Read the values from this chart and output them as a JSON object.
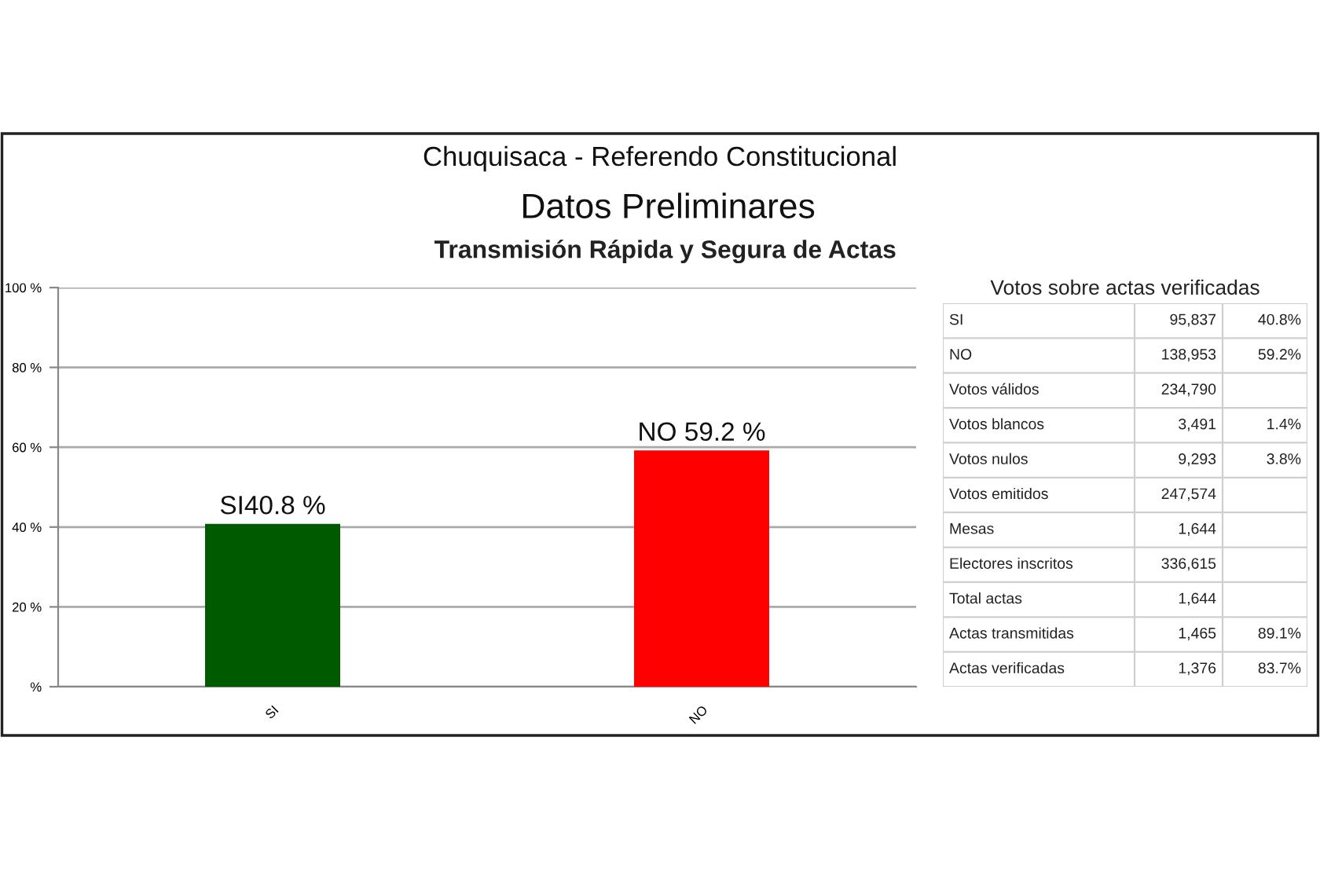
{
  "chart_data": [
    {
      "type": "bar",
      "title": "Chuquisaca - Referendo Constitucional",
      "subtitle": "Datos Preliminares",
      "annotations": [
        "Transmisión Rápida y Segura de Actas"
      ],
      "categories": [
        "SI",
        "NO"
      ],
      "values": [
        40.8,
        59.2
      ],
      "colors": [
        "#005a00",
        "#ff0000"
      ],
      "value_labels": [
        "SI40.8 %",
        "NO 59.2 %"
      ],
      "ylim": [
        0,
        100
      ],
      "yticks": [
        {
          "value": 0,
          "label": "%"
        },
        {
          "value": 20,
          "label": "20 %"
        },
        {
          "value": 40,
          "label": "40 %"
        },
        {
          "value": 60,
          "label": "60 %"
        },
        {
          "value": 80,
          "label": "80 %"
        },
        {
          "value": 100,
          "label": "100 %"
        }
      ],
      "grid": "y"
    },
    {
      "type": "other",
      "title": "Votos sobre actas verificadas",
      "categories": [
        "SI",
        "NO",
        "Votos válidos",
        "Votos blancos",
        "Votos nulos",
        "Votos emitidos",
        "Mesas",
        "Electores inscritos",
        "Total actas",
        "Actas transmitidas",
        "Actas verificadas"
      ],
      "annotations": [
        "95,837",
        "40.8%",
        "138,953",
        "59.2%",
        "234,790",
        null,
        "3,491",
        "1.4%",
        "9,293",
        "3.8%",
        "247,574",
        null,
        "1,644",
        null,
        "336,615",
        null,
        "1,644",
        null,
        "1,465",
        "89.1%",
        "1,376",
        "83.7%"
      ]
    }
  ]
}
